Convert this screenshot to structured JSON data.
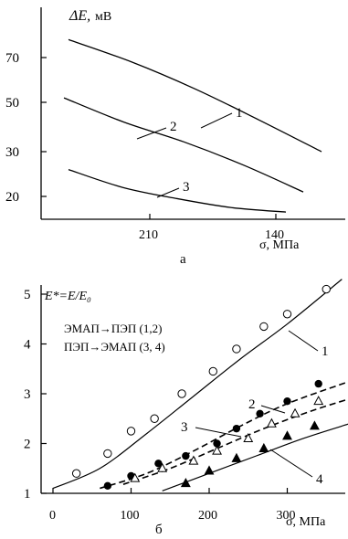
{
  "chart_data": [
    {
      "type": "line",
      "panel_label": "а",
      "y_title_symbol": "ΔE,",
      "y_title_unit": "мВ",
      "x_title": "σ, МПа",
      "x_ticks": [
        "210",
        "140"
      ],
      "y_ticks": [
        "70",
        "50",
        "30",
        "20"
      ],
      "series": [
        {
          "name": "1",
          "points": [
            [
              0.0,
              78
            ],
            [
              0.25,
              68
            ],
            [
              0.5,
              56
            ],
            [
              0.75,
              43
            ],
            [
              1.0,
              30
            ]
          ]
        },
        {
          "name": "2",
          "points": [
            [
              0.0,
              52
            ],
            [
              0.25,
              42
            ],
            [
              0.5,
              34
            ],
            [
              0.75,
              27
            ],
            [
              1.0,
              21
            ]
          ]
        },
        {
          "name": "3",
          "points": [
            [
              0.0,
              26
            ],
            [
              0.25,
              22
            ],
            [
              0.5,
              19.5
            ],
            [
              0.75,
              17.5
            ],
            [
              1.0,
              16.5
            ]
          ]
        }
      ]
    },
    {
      "type": "scatter",
      "panel_label": "б",
      "y_title": "E*=E/E₀",
      "legend_line1": "ЭМАП→ПЭП (1,2)",
      "legend_line2": "ПЭП→ЭМАП (3, 4)",
      "x_title": "σ, МПа",
      "x_ticks": [
        "0",
        "100",
        "200",
        "300"
      ],
      "y_ticks": [
        "5",
        "4",
        "3",
        "2",
        "1"
      ],
      "xlim": [
        0,
        380
      ],
      "ylim": [
        1,
        5.2
      ],
      "series": [
        {
          "name": "1",
          "marker": "open-circle",
          "line": "solid",
          "points": [
            [
              30,
              1.4
            ],
            [
              70,
              1.8
            ],
            [
              100,
              2.25
            ],
            [
              130,
              2.5
            ],
            [
              165,
              3.0
            ],
            [
              205,
              3.45
            ],
            [
              235,
              3.9
            ],
            [
              270,
              4.35
            ],
            [
              300,
              4.6
            ],
            [
              350,
              5.1
            ]
          ],
          "curve": [
            [
              0,
              1.1
            ],
            [
              60,
              1.5
            ],
            [
              120,
              2.2
            ],
            [
              180,
              2.95
            ],
            [
              240,
              3.7
            ],
            [
              300,
              4.4
            ],
            [
              370,
              5.3
            ]
          ]
        },
        {
          "name": "2",
          "marker": "filled-circle",
          "line": "dashed",
          "points": [
            [
              70,
              1.15
            ],
            [
              100,
              1.35
            ],
            [
              135,
              1.6
            ],
            [
              170,
              1.75
            ],
            [
              210,
              2.0
            ],
            [
              235,
              2.3
            ],
            [
              265,
              2.6
            ],
            [
              300,
              2.85
            ],
            [
              340,
              3.2
            ]
          ],
          "curve": [
            [
              60,
              1.1
            ],
            [
              120,
              1.4
            ],
            [
              180,
              1.85
            ],
            [
              240,
              2.35
            ],
            [
              300,
              2.8
            ],
            [
              380,
              3.25
            ]
          ]
        },
        {
          "name": "3",
          "marker": "open-triangle",
          "line": "dashed",
          "points": [
            [
              105,
              1.3
            ],
            [
              140,
              1.5
            ],
            [
              180,
              1.65
            ],
            [
              210,
              1.85
            ],
            [
              250,
              2.1
            ],
            [
              280,
              2.4
            ],
            [
              310,
              2.6
            ],
            [
              340,
              2.85
            ]
          ],
          "curve": [
            [
              90,
              1.18
            ],
            [
              150,
              1.5
            ],
            [
              210,
              1.9
            ],
            [
              270,
              2.3
            ],
            [
              330,
              2.65
            ],
            [
              380,
              2.9
            ]
          ]
        },
        {
          "name": "4",
          "marker": "filled-triangle",
          "line": "solid",
          "points": [
            [
              170,
              1.2
            ],
            [
              200,
              1.45
            ],
            [
              235,
              1.7
            ],
            [
              270,
              1.9
            ],
            [
              300,
              2.15
            ],
            [
              335,
              2.35
            ]
          ],
          "curve": [
            [
              140,
              1.05
            ],
            [
              200,
              1.4
            ],
            [
              260,
              1.75
            ],
            [
              320,
              2.1
            ],
            [
              380,
              2.4
            ]
          ]
        }
      ]
    }
  ]
}
